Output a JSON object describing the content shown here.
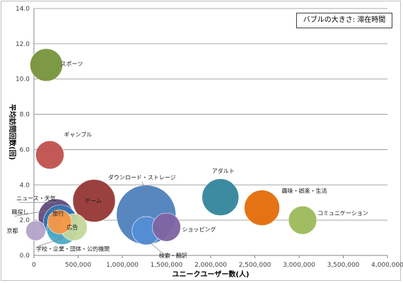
{
  "chart_data": {
    "type": "bubble",
    "title": "",
    "xlabel": "ユニークユーザー数(人)",
    "ylabel": "平均訪問回数(回)",
    "size_note": "バブルの大きさ: 滞在時間",
    "xlim": [
      0,
      4000000
    ],
    "ylim": [
      0,
      14
    ],
    "x_ticks": [
      "0",
      "500,000",
      "1,000,000",
      "1,500,000",
      "2,000,000",
      "2,500,000",
      "3,000,000",
      "3,500,000",
      "4,000,000"
    ],
    "y_ticks": [
      "0.0",
      "2.0",
      "4.0",
      "6.0",
      "8.0",
      "10.0",
      "12.0",
      "14.0"
    ],
    "grid": "horizontal",
    "points": [
      {
        "name": "スポーツ",
        "x": 140000,
        "y": 10.8,
        "size": 23,
        "color": "#77933c"
      },
      {
        "name": "ギャンブル",
        "x": 180000,
        "y": 5.7,
        "size": 20,
        "color": "#c0504d"
      },
      {
        "name": "ダウンロード・ストレージ",
        "x": 1270000,
        "y": 2.3,
        "size": 42,
        "color": "#4f81bd"
      },
      {
        "name": "アダルト",
        "x": 2110000,
        "y": 3.3,
        "size": 26,
        "color": "#31859c"
      },
      {
        "name": "趣味・娯楽・生活",
        "x": 2580000,
        "y": 2.7,
        "size": 25,
        "color": "#e46c0a"
      },
      {
        "name": "コミュニケーション",
        "x": 3040000,
        "y": 2.0,
        "size": 20,
        "color": "#9bbb59"
      },
      {
        "name": "ゲーム",
        "x": 680000,
        "y": 3.1,
        "size": 30,
        "color": "#953735"
      },
      {
        "name": "ニュース・天気",
        "x": 250000,
        "y": 2.2,
        "size": 25,
        "color": "#604a7b"
      },
      {
        "name": "職探し",
        "x": 300000,
        "y": 1.9,
        "size": 24,
        "color": "#2e75b6"
      },
      {
        "name": "学校・企業・団体・公的機関",
        "x": 320000,
        "y": 1.5,
        "size": 22,
        "color": "#4bacc6"
      },
      {
        "name": "旅行",
        "x": 290000,
        "y": 1.9,
        "size": 17,
        "color": "#f79646"
      },
      {
        "name": "広告",
        "x": 450000,
        "y": 1.6,
        "size": 19,
        "color": "#c4d79b"
      },
      {
        "name": "検索・翻訳",
        "x": 1270000,
        "y": 1.4,
        "size": 20,
        "color": "#538dd5"
      },
      {
        "name": "ショッピング",
        "x": 1500000,
        "y": 1.6,
        "size": 20,
        "color": "#8064a2"
      },
      {
        "name": "京都",
        "x": 20000,
        "y": 1.4,
        "size": 14,
        "color": "#b3a2c7"
      }
    ]
  }
}
